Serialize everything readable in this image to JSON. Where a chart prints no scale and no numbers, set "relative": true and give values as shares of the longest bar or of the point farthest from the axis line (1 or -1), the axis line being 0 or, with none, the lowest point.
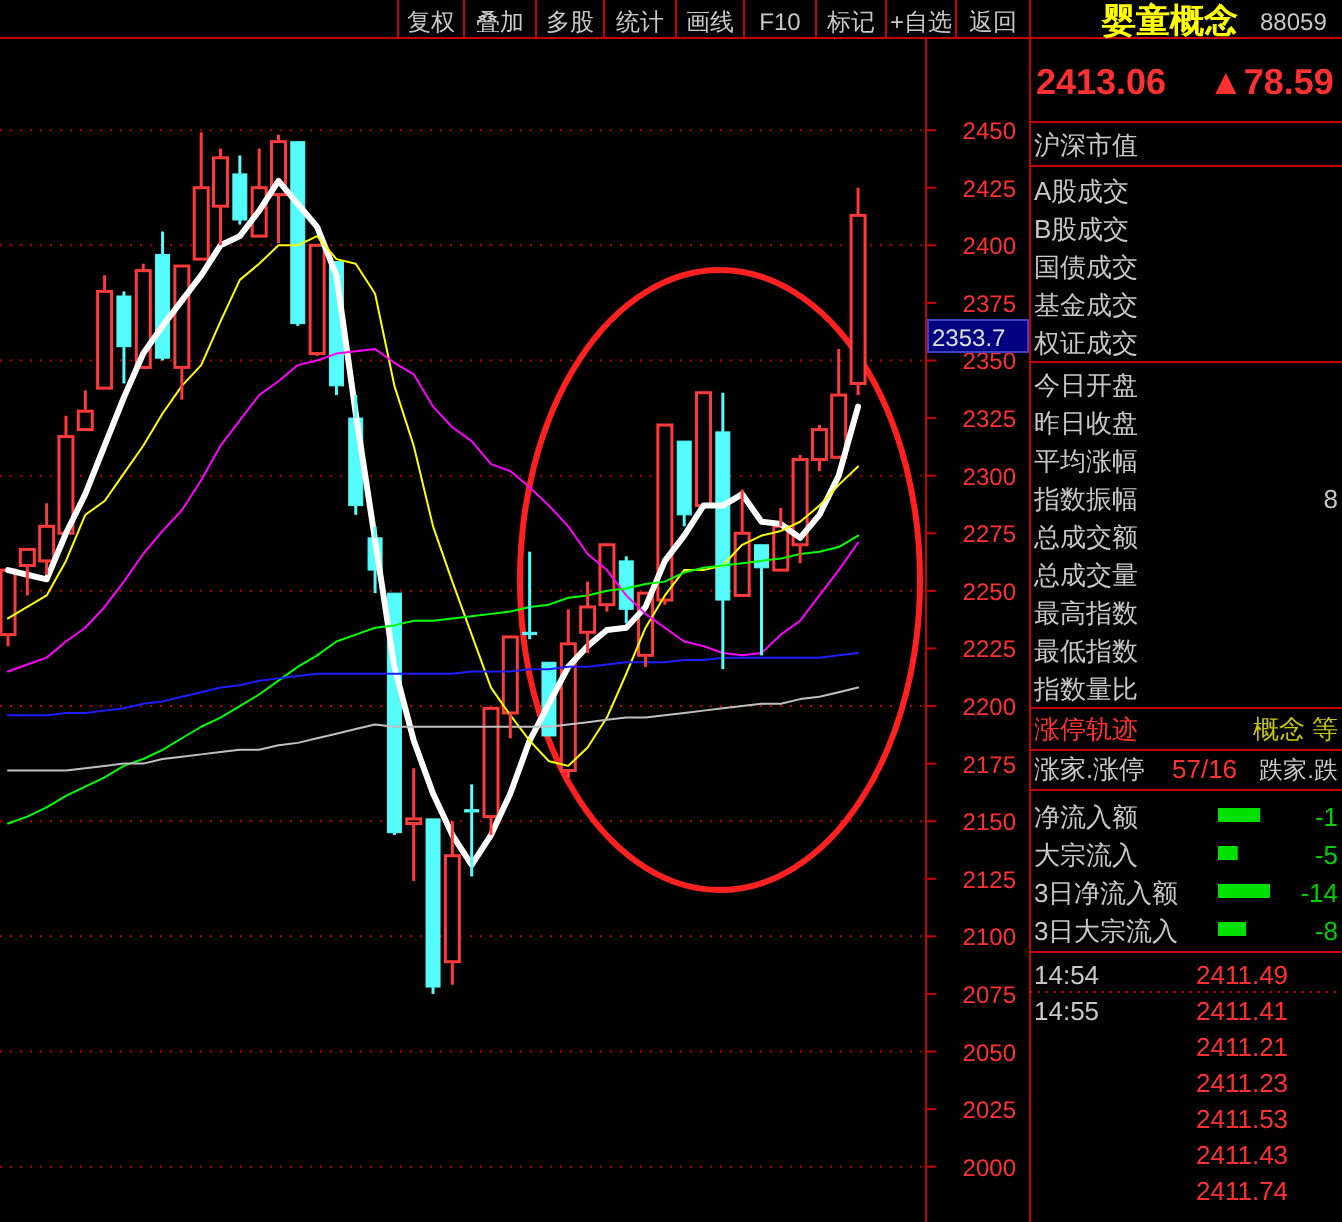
{
  "chart_data": [
    {
      "type": "candlestick",
      "categories": [
        null,
        null,
        null,
        null,
        null,
        null,
        null,
        null,
        null,
        null,
        null,
        null,
        null,
        null,
        null,
        null,
        null,
        null,
        null,
        null,
        null,
        null,
        null,
        null,
        null,
        null,
        null,
        null,
        null,
        null,
        null,
        null,
        null,
        null,
        null,
        null,
        null,
        null,
        null,
        null,
        null,
        null,
        null,
        null,
        null
      ],
      "ohlc": [
        [
          2231,
          2259,
          2226,
          2259
        ],
        [
          2261,
          2268,
          2248,
          2268
        ],
        [
          2263,
          2288,
          2257,
          2278
        ],
        [
          2275,
          2326,
          2275,
          2317
        ],
        [
          2320,
          2337,
          2320,
          2328
        ],
        [
          2338,
          2387,
          2338,
          2380
        ],
        [
          2378,
          2380,
          2340,
          2356
        ],
        [
          2347,
          2392,
          2347,
          2389
        ],
        [
          2396,
          2406,
          2350,
          2351
        ],
        [
          2347,
          2391,
          2333,
          2391
        ],
        [
          2394,
          2449,
          2394,
          2425
        ],
        [
          2417,
          2442,
          2400,
          2438
        ],
        [
          2431,
          2439,
          2409,
          2411
        ],
        [
          2404,
          2442,
          2404,
          2425
        ],
        [
          2422,
          2448,
          2401,
          2445
        ],
        [
          2445,
          2445,
          2365,
          2366
        ],
        [
          2353,
          2400,
          2352,
          2400
        ],
        [
          2393,
          2393,
          2335,
          2339
        ],
        [
          2325,
          2335,
          2283,
          2287
        ],
        [
          2273,
          2278,
          2249,
          2259
        ],
        [
          2249,
          2249,
          2144,
          2145
        ],
        [
          2149,
          2173,
          2124,
          2151
        ],
        [
          2151,
          2151,
          2075,
          2078
        ],
        [
          2089,
          2150,
          2079,
          2135
        ],
        [
          2155,
          2166,
          2126,
          2154
        ],
        [
          2152,
          2199,
          2144,
          2199
        ],
        [
          2197,
          2230,
          2186,
          2230
        ],
        [
          2232,
          2267,
          2229,
          2231
        ],
        [
          2219,
          2219,
          2187,
          2187
        ],
        [
          2172,
          2242,
          2169,
          2227
        ],
        [
          2232,
          2254,
          2223,
          2243
        ],
        [
          2244,
          2270,
          2241,
          2270
        ],
        [
          2263,
          2265,
          2236,
          2242
        ],
        [
          2222,
          2249,
          2217,
          2249
        ],
        [
          2246,
          2322,
          2244,
          2322
        ],
        [
          2315,
          2315,
          2278,
          2283
        ],
        [
          2287,
          2336,
          2287,
          2336
        ],
        [
          2319,
          2336,
          2216,
          2246
        ],
        [
          2248,
          2294,
          2248,
          2275
        ],
        [
          2270,
          2270,
          2222,
          2260
        ],
        [
          2259,
          2286,
          2259,
          2278
        ],
        [
          2270,
          2309,
          2262,
          2307
        ],
        [
          2307,
          2322,
          2302,
          2320
        ],
        [
          2308,
          2355,
          2308,
          2335
        ],
        [
          2340,
          2425,
          2335,
          2413
        ]
      ],
      "colors": [
        "#ff3a3a",
        "#ff3a3a",
        "#ff3a3a",
        "#ff3a3a",
        "#ff3a3a",
        "#ff3a3a",
        "#54fcfc",
        "#ff3a3a",
        "#54fcfc",
        "#ff3a3a",
        "#ff3a3a",
        "#ff3a3a",
        "#54fcfc",
        "#ff3a3a",
        "#ff3a3a",
        "#54fcfc",
        "#ff3a3a",
        "#54fcfc",
        "#54fcfc",
        "#54fcfc",
        "#54fcfc",
        "#ff3a3a",
        "#54fcfc",
        "#ff3a3a",
        "#54fcfc",
        "#ff3a3a",
        "#ff3a3a",
        "#54fcfc",
        "#54fcfc",
        "#ff3a3a",
        "#ff3a3a",
        "#ff3a3a",
        "#54fcfc",
        "#ff3a3a",
        "#ff3a3a",
        "#54fcfc",
        "#ff3a3a",
        "#54fcfc",
        "#ff3a3a",
        "#54fcfc",
        "#ff3a3a",
        "#ff3a3a",
        "#ff3a3a",
        "#ff3a3a",
        "#ff3a3a"
      ],
      "series": [
        {
          "type": "line",
          "color": "#ffffff",
          "values": [
            2259,
            2257,
            2255,
            2275,
            2292,
            2313,
            2334,
            2353,
            2365,
            2376,
            2387,
            2400,
            2404,
            2415,
            2428,
            2418,
            2408,
            2387,
            2327,
            2272,
            2217,
            2185,
            2162,
            2144,
            2131,
            2144,
            2162,
            2185,
            2201,
            2217,
            2226,
            2233,
            2234,
            2243,
            2263,
            2274,
            2287,
            2287,
            2292,
            2280,
            2279,
            2273,
            2283,
            2300,
            2330
          ]
        },
        {
          "type": "line",
          "color": "#ffff00",
          "values": [
            2238,
            2243,
            2248,
            2263,
            2283,
            2289,
            2301,
            2313,
            2327,
            2339,
            2348,
            2367,
            2385,
            2392,
            2400,
            2400,
            2404,
            2394,
            2392,
            2379,
            2339,
            2313,
            2278,
            2254,
            2231,
            2208,
            2196,
            2185,
            2176,
            2174,
            2182,
            2195,
            2214,
            2234,
            2248,
            2259,
            2259,
            2261,
            2270,
            2274,
            2276,
            2280,
            2287,
            2296,
            2304
          ]
        },
        {
          "type": "line",
          "color": "#ff00ff",
          "values": [
            2215,
            2218,
            2221,
            2228,
            2234,
            2243,
            2254,
            2266,
            2276,
            2285,
            2298,
            2313,
            2324,
            2335,
            2341,
            2348,
            2350,
            2353,
            2354,
            2355,
            2349,
            2344,
            2330,
            2321,
            2315,
            2305,
            2302,
            2295,
            2287,
            2278,
            2266,
            2259,
            2248,
            2240,
            2234,
            2228,
            2226,
            2223,
            2222,
            2223,
            2231,
            2237,
            2248,
            2259,
            2271
          ]
        },
        {
          "type": "line",
          "color": "#00ff00",
          "values": [
            2149,
            2152,
            2156,
            2161,
            2165,
            2169,
            2174,
            2177,
            2181,
            2186,
            2191,
            2195,
            2200,
            2205,
            2211,
            2217,
            2222,
            2228,
            2231,
            2234,
            2235,
            2237,
            2237,
            2238,
            2239,
            2240,
            2241,
            2243,
            2244,
            2247,
            2248,
            2250,
            2251,
            2253,
            2254,
            2258,
            2260,
            2261,
            2262,
            2263,
            2264,
            2266,
            2267,
            2269,
            2274
          ]
        },
        {
          "type": "line",
          "color": "#1e1eff",
          "values": [
            2196,
            2196,
            2196,
            2197,
            2197,
            2198,
            2199,
            2201,
            2202,
            2204,
            2206,
            2208,
            2209,
            2211,
            2212,
            2213,
            2214,
            2214,
            2214,
            2214,
            2214,
            2214,
            2214,
            2214,
            2215,
            2215,
            2215,
            2216,
            2216,
            2217,
            2217,
            2218,
            2219,
            2219,
            2219,
            2220,
            2220,
            2221,
            2221,
            2221,
            2221,
            2221,
            2221,
            2222,
            2223
          ]
        },
        {
          "type": "line",
          "color": "#c0c0c0",
          "values": [
            2172,
            2172,
            2172,
            2172,
            2173,
            2174,
            2175,
            2175,
            2177,
            2178,
            2179,
            2180,
            2181,
            2181,
            2183,
            2184,
            2186,
            2188,
            2190,
            2192,
            2191,
            2191,
            2191,
            2191,
            2191,
            2191,
            2191,
            2191,
            2191,
            2192,
            2193,
            2194,
            2195,
            2195,
            2196,
            2197,
            2198,
            2199,
            2200,
            2201,
            2201,
            2203,
            2204,
            2206,
            2208
          ]
        }
      ],
      "ylim": [
        1976,
        2490
      ],
      "yticks": [
        2000,
        2025,
        2050,
        2075,
        2100,
        2125,
        2150,
        2175,
        2200,
        2225,
        2250,
        2275,
        2300,
        2325,
        2350,
        2375,
        2400,
        2425,
        2450
      ],
      "grid": "y",
      "tick_labels": "y",
      "annotations": [
        "2353.7"
      ]
    },
    {
      "type": "other",
      "title": "婴童概念",
      "subtitle": "88059",
      "annotations": [
        "2413.06",
        "▲78.59",
        "沪深市值",
        "A股成交",
        "B股成交",
        "国债成交",
        "基金成交",
        "权证成交",
        "今日开盘",
        "昨日收盘",
        "平均涨幅",
        "指数振幅",
        "总成交额",
        "总成交量",
        "最高指数",
        "最低指数",
        "指数量比",
        "8",
        "涨停轨迹",
        "概念 等",
        "涨家.涨停",
        "57/16",
        "跌家.跌",
        "14:54",
        "2411.49",
        "14:55",
        "2411.41",
        "2411.21",
        "2411.23",
        "2411.53",
        "2411.43",
        "2411.74",
        "复权",
        "叠加",
        "多股",
        "统计",
        "画线",
        "F10",
        "标记",
        "+自选",
        "返回"
      ]
    },
    {
      "type": "bar",
      "orientation": "horizontal",
      "relative": true,
      "color": "#00e000",
      "categories": [
        "净流入额",
        "大宗流入",
        "3日净流入额",
        "3日大宗流入"
      ],
      "values": [
        0.81,
        0.38,
        1,
        0.54
      ],
      "annotations": [
        "-1",
        "-5",
        "-14",
        "-8"
      ]
    }
  ]
}
